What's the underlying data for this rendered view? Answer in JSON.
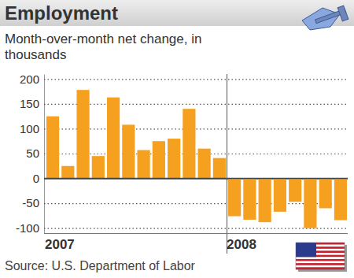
{
  "chart_data": {
    "type": "bar",
    "title": "Employment",
    "subtitle": "Month-over-month net change, in thousands",
    "source": "Source: U.S. Department of Labor",
    "categories": [
      "2007",
      null,
      null,
      null,
      null,
      null,
      null,
      null,
      null,
      null,
      null,
      null,
      "2008",
      null,
      null,
      null,
      null,
      null,
      null,
      null
    ],
    "values": [
      125,
      25,
      178,
      45,
      163,
      108,
      57,
      75,
      80,
      140,
      60,
      41,
      -76,
      -83,
      -88,
      -67,
      -47,
      -100,
      -60,
      -84
    ],
    "color": "#f5a01e",
    "ylim": [
      -110,
      210
    ],
    "yticks": [
      -100,
      -50,
      0,
      50,
      100,
      150,
      200
    ],
    "grid": true
  }
}
